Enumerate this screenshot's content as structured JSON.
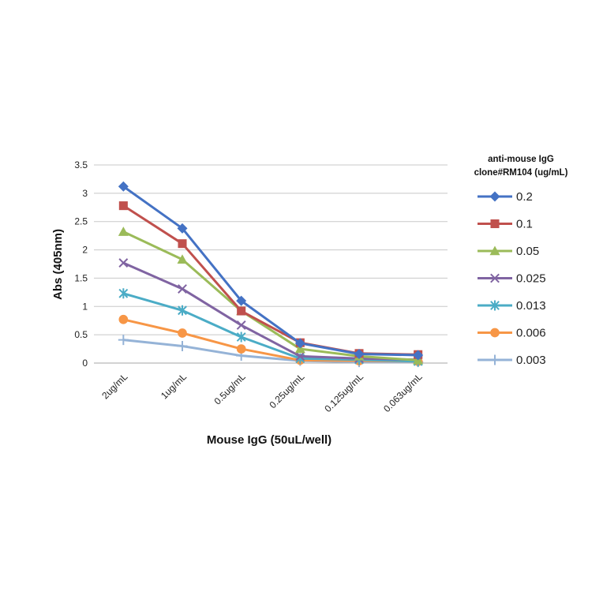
{
  "chart_data": {
    "type": "line",
    "xlabel": "Mouse IgG (50uL/well)",
    "ylabel": "Abs (405nm)",
    "categories": [
      "2ug/mL",
      "1ug/mL",
      "0.5ug/mL",
      "0.25ug/mL",
      "0.125ug/mL",
      "0.063ug/mL"
    ],
    "ylim": [
      0,
      3.5
    ],
    "yticks": [
      "0",
      "0.5",
      "1",
      "1.5",
      "2",
      "2.5",
      "3",
      "3.5"
    ],
    "grid": "horizontal",
    "legend_title": [
      "anti-mouse IgG",
      "clone#RM104 (ug/mL)"
    ],
    "legend_position": "right",
    "series": [
      {
        "name": "0.2",
        "color": "#4472c4",
        "marker": "diamond",
        "values": [
          3.12,
          2.38,
          1.1,
          0.35,
          0.16,
          0.14
        ]
      },
      {
        "name": "0.1",
        "color": "#c0504d",
        "marker": "square",
        "values": [
          2.78,
          2.11,
          0.92,
          0.36,
          0.17,
          0.15
        ]
      },
      {
        "name": "0.05",
        "color": "#9bbb59",
        "marker": "triangle",
        "values": [
          2.32,
          1.83,
          0.92,
          0.25,
          0.12,
          0.05
        ]
      },
      {
        "name": "0.025",
        "color": "#8064a2",
        "marker": "x",
        "values": [
          1.77,
          1.31,
          0.67,
          0.12,
          0.08,
          0.06
        ]
      },
      {
        "name": "0.013",
        "color": "#4bacc6",
        "marker": "star",
        "values": [
          1.23,
          0.93,
          0.46,
          0.08,
          0.06,
          0.03
        ]
      },
      {
        "name": "0.006",
        "color": "#f79646",
        "marker": "circle",
        "values": [
          0.77,
          0.53,
          0.25,
          0.05,
          0.04,
          0.03
        ]
      },
      {
        "name": "0.003",
        "color": "#95b3d7",
        "marker": "plus",
        "values": [
          0.41,
          0.3,
          0.13,
          0.04,
          0.02,
          0.02
        ]
      }
    ]
  }
}
